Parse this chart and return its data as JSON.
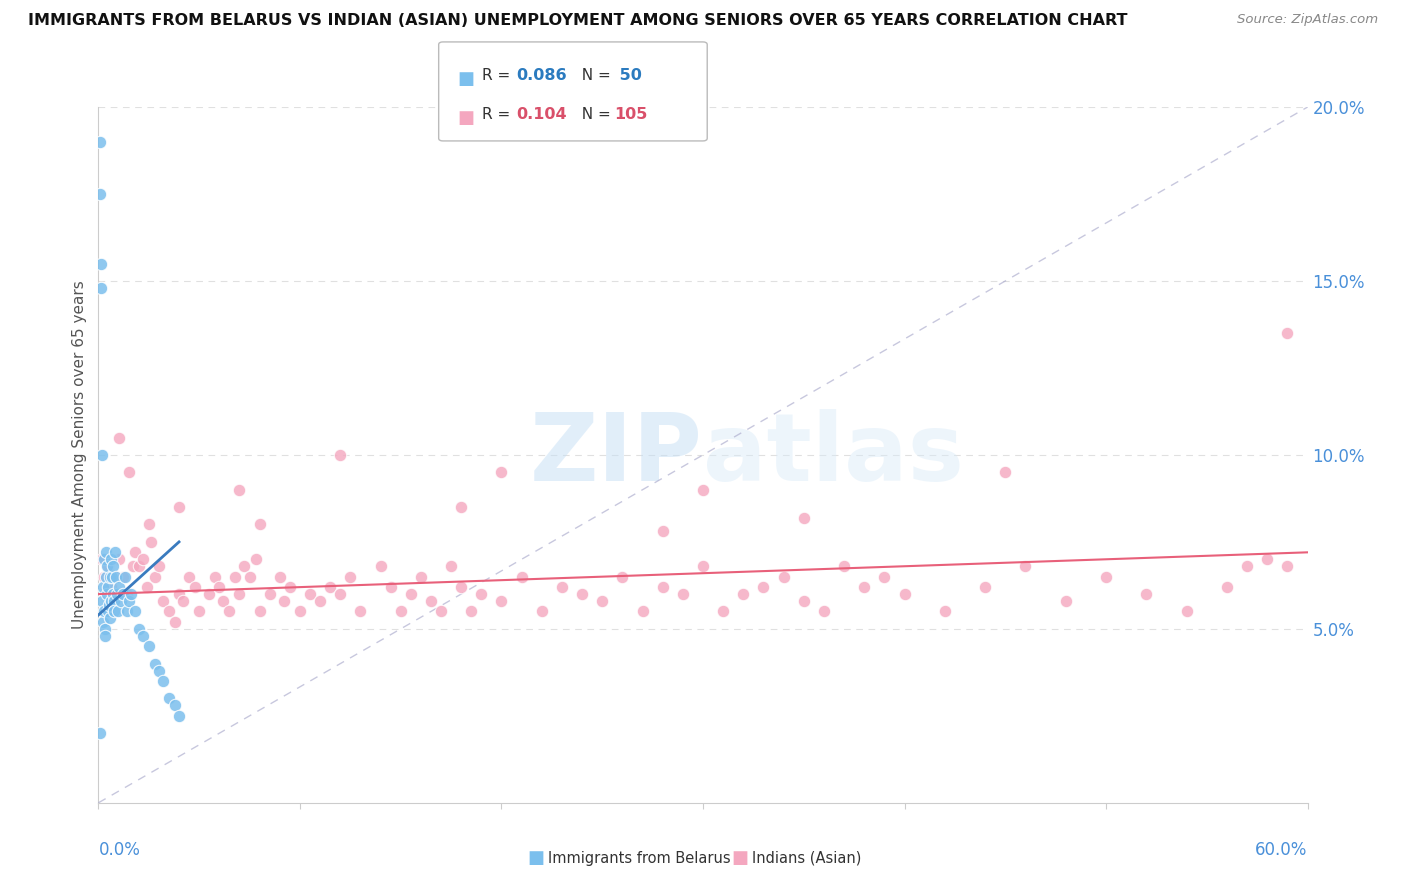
{
  "title": "IMMIGRANTS FROM BELARUS VS INDIAN (ASIAN) UNEMPLOYMENT AMONG SENIORS OVER 65 YEARS CORRELATION CHART",
  "source": "Source: ZipAtlas.com",
  "ylabel": "Unemployment Among Seniors over 65 years",
  "xmin": 0.0,
  "xmax": 0.6,
  "ymin": 0.0,
  "ymax": 0.2,
  "yticks": [
    0.0,
    0.05,
    0.1,
    0.15,
    0.2
  ],
  "ytick_labels": [
    "",
    "5.0%",
    "10.0%",
    "15.0%",
    "20.0%"
  ],
  "series1_label": "Immigrants from Belarus",
  "series2_label": "Indians (Asian)",
  "color1": "#7bbfed",
  "color2": "#f4a7bf",
  "trendline1_color": "#3a7bbf",
  "trendline2_color": "#e8607a",
  "watermark": "ZIPatlas",
  "background_color": "#ffffff",
  "belarus_x": [
    0.0008,
    0.001,
    0.0012,
    0.0015,
    0.0018,
    0.002,
    0.0022,
    0.0025,
    0.0028,
    0.003,
    0.0032,
    0.0035,
    0.0038,
    0.004,
    0.0042,
    0.0045,
    0.0048,
    0.005,
    0.0052,
    0.0055,
    0.0058,
    0.006,
    0.0062,
    0.0065,
    0.007,
    0.0072,
    0.0075,
    0.0078,
    0.008,
    0.0085,
    0.009,
    0.0095,
    0.01,
    0.011,
    0.012,
    0.013,
    0.014,
    0.015,
    0.016,
    0.018,
    0.02,
    0.022,
    0.025,
    0.028,
    0.03,
    0.032,
    0.035,
    0.038,
    0.04,
    0.0008
  ],
  "belarus_y": [
    0.19,
    0.175,
    0.155,
    0.148,
    0.1,
    0.058,
    0.052,
    0.062,
    0.055,
    0.07,
    0.05,
    0.048,
    0.072,
    0.065,
    0.06,
    0.068,
    0.055,
    0.062,
    0.057,
    0.065,
    0.053,
    0.058,
    0.07,
    0.065,
    0.068,
    0.06,
    0.058,
    0.055,
    0.072,
    0.065,
    0.06,
    0.055,
    0.062,
    0.058,
    0.06,
    0.065,
    0.055,
    0.058,
    0.06,
    0.055,
    0.05,
    0.048,
    0.045,
    0.04,
    0.038,
    0.035,
    0.03,
    0.028,
    0.025,
    0.02
  ],
  "indian_x": [
    0.002,
    0.003,
    0.005,
    0.006,
    0.007,
    0.008,
    0.009,
    0.01,
    0.012,
    0.014,
    0.015,
    0.017,
    0.018,
    0.02,
    0.022,
    0.024,
    0.026,
    0.028,
    0.03,
    0.032,
    0.035,
    0.038,
    0.04,
    0.042,
    0.045,
    0.048,
    0.05,
    0.055,
    0.058,
    0.06,
    0.062,
    0.065,
    0.068,
    0.07,
    0.072,
    0.075,
    0.078,
    0.08,
    0.085,
    0.09,
    0.092,
    0.095,
    0.1,
    0.105,
    0.11,
    0.115,
    0.12,
    0.125,
    0.13,
    0.14,
    0.145,
    0.15,
    0.155,
    0.16,
    0.165,
    0.17,
    0.175,
    0.18,
    0.185,
    0.19,
    0.2,
    0.21,
    0.22,
    0.23,
    0.24,
    0.25,
    0.26,
    0.27,
    0.28,
    0.29,
    0.3,
    0.31,
    0.32,
    0.33,
    0.34,
    0.35,
    0.36,
    0.37,
    0.38,
    0.39,
    0.4,
    0.42,
    0.44,
    0.46,
    0.48,
    0.5,
    0.52,
    0.54,
    0.56,
    0.57,
    0.58,
    0.59,
    0.01,
    0.025,
    0.04,
    0.07,
    0.12,
    0.2,
    0.3,
    0.45,
    0.35,
    0.28,
    0.18,
    0.08,
    0.59
  ],
  "indian_y": [
    0.07,
    0.065,
    0.068,
    0.062,
    0.06,
    0.058,
    0.065,
    0.07,
    0.065,
    0.06,
    0.095,
    0.068,
    0.072,
    0.068,
    0.07,
    0.062,
    0.075,
    0.065,
    0.068,
    0.058,
    0.055,
    0.052,
    0.06,
    0.058,
    0.065,
    0.062,
    0.055,
    0.06,
    0.065,
    0.062,
    0.058,
    0.055,
    0.065,
    0.06,
    0.068,
    0.065,
    0.07,
    0.055,
    0.06,
    0.065,
    0.058,
    0.062,
    0.055,
    0.06,
    0.058,
    0.062,
    0.06,
    0.065,
    0.055,
    0.068,
    0.062,
    0.055,
    0.06,
    0.065,
    0.058,
    0.055,
    0.068,
    0.062,
    0.055,
    0.06,
    0.058,
    0.065,
    0.055,
    0.062,
    0.06,
    0.058,
    0.065,
    0.055,
    0.062,
    0.06,
    0.068,
    0.055,
    0.06,
    0.062,
    0.065,
    0.058,
    0.055,
    0.068,
    0.062,
    0.065,
    0.06,
    0.055,
    0.062,
    0.068,
    0.058,
    0.065,
    0.06,
    0.055,
    0.062,
    0.068,
    0.07,
    0.068,
    0.105,
    0.08,
    0.085,
    0.09,
    0.1,
    0.095,
    0.09,
    0.095,
    0.082,
    0.078,
    0.085,
    0.08,
    0.135
  ],
  "trendline1_x": [
    0.0,
    0.04
  ],
  "trendline1_y": [
    0.054,
    0.075
  ],
  "trendline2_x": [
    0.0,
    0.6
  ],
  "trendline2_y": [
    0.06,
    0.072
  ]
}
